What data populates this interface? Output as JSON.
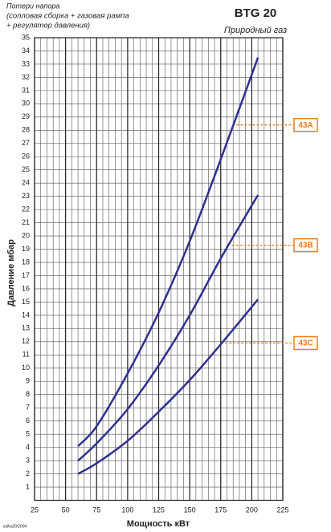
{
  "chart_data": {
    "type": "line",
    "title": "BTG 20",
    "subtitle": "Природный газ",
    "note_lines": [
      "Потери напора",
      "(сопловая сборка + газовая рампа",
      "+ регулятор давления)"
    ],
    "footer": "edhu20/2004",
    "x_label": "Мощность кВт",
    "y_label": "Давление мбар",
    "xlim": [
      25,
      225
    ],
    "xticks": [
      25,
      50,
      75,
      100,
      125,
      150,
      175,
      200,
      225
    ],
    "xgrid_step": 5,
    "ylim": [
      0,
      35
    ],
    "yticks": [
      1,
      2,
      3,
      4,
      5,
      6,
      7,
      8,
      9,
      10,
      11,
      12,
      13,
      14,
      15,
      16,
      17,
      18,
      19,
      20,
      21,
      22,
      23,
      24,
      25,
      26,
      27,
      28,
      29,
      30,
      31,
      32,
      33,
      34,
      35
    ],
    "grid": true,
    "line_color": "#2e3192",
    "label_color": "#e8801e",
    "x": [
      60,
      75,
      100,
      125,
      150,
      175,
      205
    ],
    "series": [
      {
        "name": "43A",
        "values": [
          4.1,
          5.6,
          9.6,
          14.2,
          19.6,
          25.8,
          33.5
        ],
        "label_y": 28.4
      },
      {
        "name": "43B",
        "values": [
          3.0,
          4.3,
          6.9,
          10.2,
          14.0,
          18.3,
          23.1
        ],
        "label_y": 19.3
      },
      {
        "name": "43C",
        "values": [
          2.0,
          2.8,
          4.5,
          6.7,
          9.1,
          11.8,
          15.2
        ],
        "label_y": 11.9
      }
    ]
  }
}
